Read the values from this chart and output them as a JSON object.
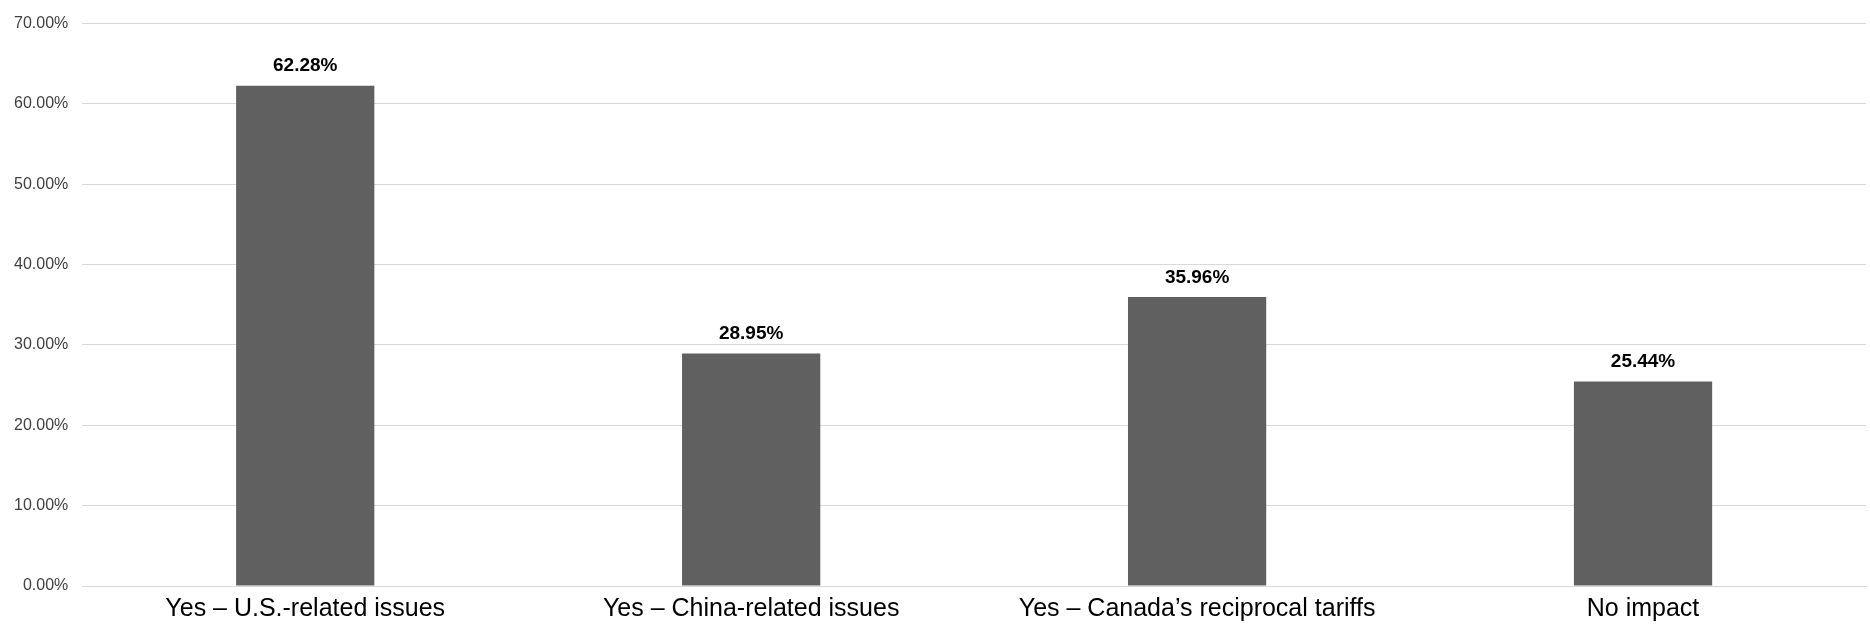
{
  "chart_data": {
    "type": "bar",
    "categories": [
      "Yes – U.S.-related issues",
      "Yes – China-related issues",
      "Yes – Canada’s reciprocal tariffs",
      "No impact"
    ],
    "values": [
      62.28,
      28.95,
      35.96,
      25.44
    ],
    "value_labels": [
      "62.28%",
      "28.95%",
      "35.96%",
      "25.44%"
    ],
    "color": "#606060",
    "ylim": [
      0,
      70
    ],
    "yticks": [
      {
        "value": 0,
        "label": "0.00%"
      },
      {
        "value": 10,
        "label": "10.00%"
      },
      {
        "value": 20,
        "label": "20.00%"
      },
      {
        "value": 30,
        "label": "30.00%"
      },
      {
        "value": 40,
        "label": "40.00%"
      },
      {
        "value": 50,
        "label": "50.00%"
      },
      {
        "value": 60,
        "label": "60.00%"
      },
      {
        "value": 70,
        "label": "70.00%"
      }
    ],
    "grid": "y"
  }
}
